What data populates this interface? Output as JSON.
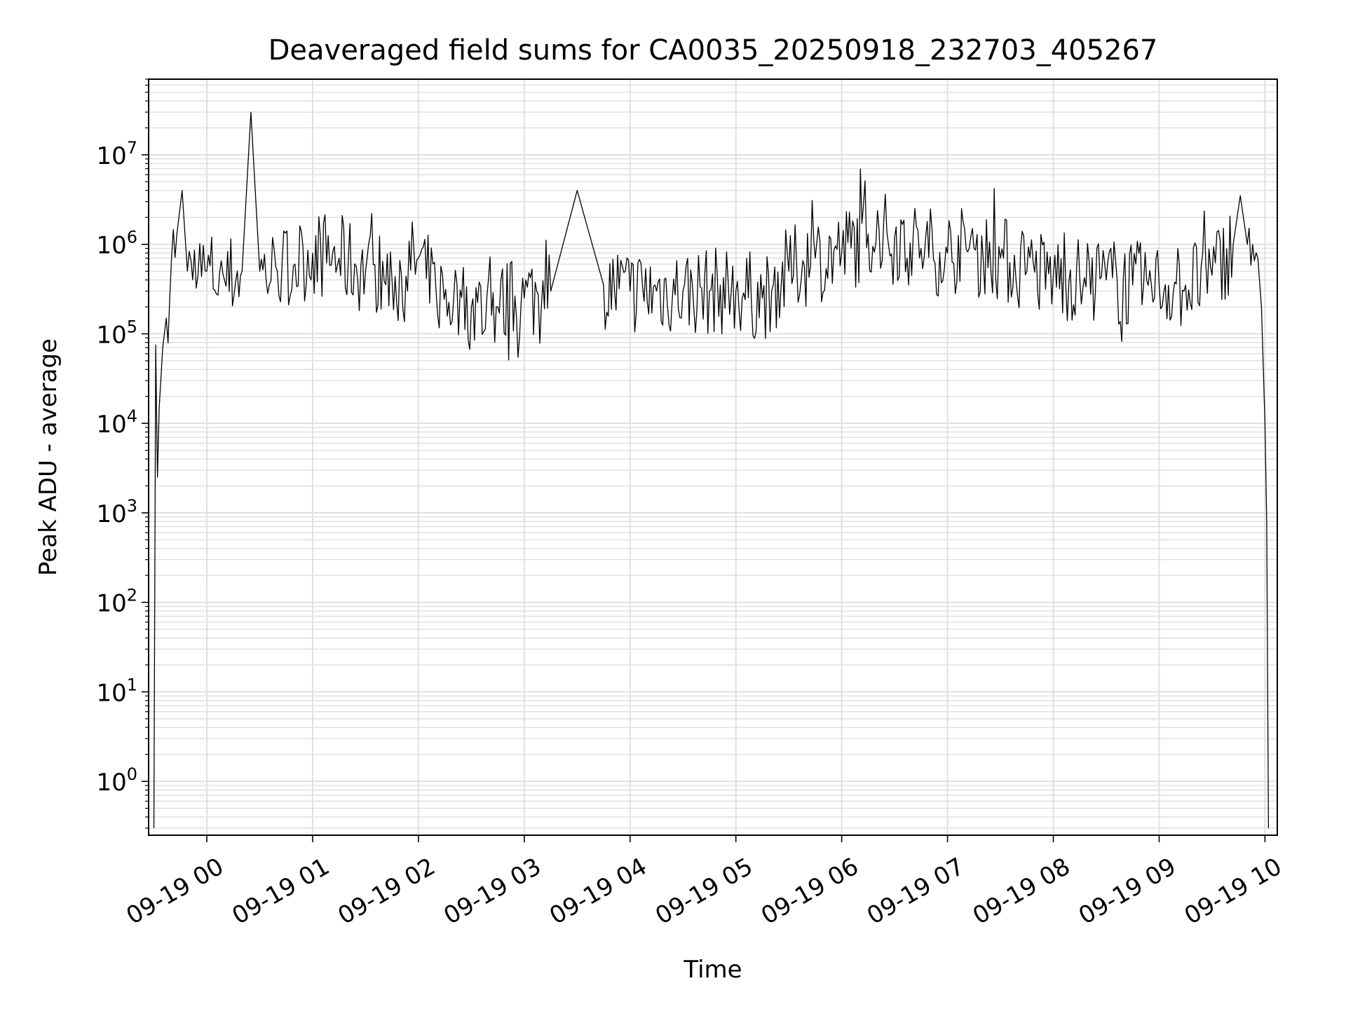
{
  "chart_data": {
    "type": "line",
    "title": "Deaveraged field sums for CA0035_20250918_232703_405267",
    "xlabel": "Time",
    "ylabel": "Peak ADU - average",
    "x_axis_type": "time",
    "y_scale": "log",
    "xlim": [
      "2025-09-18 23:27",
      "2025-09-19 10:07"
    ],
    "ylim": [
      0.25,
      70000000
    ],
    "grid": true,
    "grid_minor": true,
    "legend": "none",
    "line_color": "#000000",
    "grid_color": "#e0e0e0",
    "x_ticks": [
      {
        "value": "2025-09-19 00:00",
        "label": "09-19 00"
      },
      {
        "value": "2025-09-19 01:00",
        "label": "09-19 01"
      },
      {
        "value": "2025-09-19 02:00",
        "label": "09-19 02"
      },
      {
        "value": "2025-09-19 03:00",
        "label": "09-19 03"
      },
      {
        "value": "2025-09-19 04:00",
        "label": "09-19 04"
      },
      {
        "value": "2025-09-19 05:00",
        "label": "09-19 05"
      },
      {
        "value": "2025-09-19 06:00",
        "label": "09-19 06"
      },
      {
        "value": "2025-09-19 07:00",
        "label": "09-19 07"
      },
      {
        "value": "2025-09-19 08:00",
        "label": "09-19 08"
      },
      {
        "value": "2025-09-19 09:00",
        "label": "09-19 09"
      },
      {
        "value": "2025-09-19 10:00",
        "label": "09-19 10"
      }
    ],
    "y_ticks": [
      {
        "value": 1,
        "base": "10",
        "exp": "0"
      },
      {
        "value": 10,
        "base": "10",
        "exp": "1"
      },
      {
        "value": 100,
        "base": "10",
        "exp": "2"
      },
      {
        "value": 1000,
        "base": "10",
        "exp": "3"
      },
      {
        "value": 10000,
        "base": "10",
        "exp": "4"
      },
      {
        "value": 100000,
        "base": "10",
        "exp": "5"
      },
      {
        "value": 1000000,
        "base": "10",
        "exp": "6"
      },
      {
        "value": 10000000,
        "base": "10",
        "exp": "7"
      }
    ],
    "series": [
      {
        "x": [
          "2025-09-18 23:30",
          "2025-09-18 23:31",
          "2025-09-18 23:32",
          "2025-09-18 23:33",
          "2025-09-18 23:35",
          "2025-09-18 23:37",
          "2025-09-18 23:40",
          "2025-09-18 23:43",
          "2025-09-18 23:46",
          "2025-09-18 23:49",
          "2025-09-18 23:52",
          "2025-09-18 23:55",
          "2025-09-19 00:00",
          "2025-09-19 00:10",
          "2025-09-19 00:20",
          "2025-09-19 00:25",
          "2025-09-19 00:30",
          "2025-09-19 00:40",
          "2025-09-19 00:50",
          "2025-09-19 01:00",
          "2025-09-19 01:15",
          "2025-09-19 01:30",
          "2025-09-19 01:45",
          "2025-09-19 02:00",
          "2025-09-19 02:10",
          "2025-09-19 02:20",
          "2025-09-19 02:30",
          "2025-09-19 02:45",
          "2025-09-19 03:00",
          "2025-09-19 03:15",
          "2025-09-19 03:30",
          "2025-09-19 03:45",
          "2025-09-19 04:00",
          "2025-09-19 04:15",
          "2025-09-19 04:30",
          "2025-09-19 04:45",
          "2025-09-19 05:00",
          "2025-09-19 05:15",
          "2025-09-19 05:30",
          "2025-09-19 05:45",
          "2025-09-19 06:00",
          "2025-09-19 06:15",
          "2025-09-19 06:30",
          "2025-09-19 06:45",
          "2025-09-19 07:00",
          "2025-09-19 07:15",
          "2025-09-19 07:30",
          "2025-09-19 07:45",
          "2025-09-19 08:00",
          "2025-09-19 08:15",
          "2025-09-19 08:30",
          "2025-09-19 08:45",
          "2025-09-19 09:00",
          "2025-09-19 09:15",
          "2025-09-19 09:30",
          "2025-09-19 09:42",
          "2025-09-19 09:46",
          "2025-09-19 09:50",
          "2025-09-19 09:53",
          "2025-09-19 09:56",
          "2025-09-19 09:58",
          "2025-09-19 10:00",
          "2025-09-19 10:01",
          "2025-09-19 10:02"
        ],
        "y": [
          0.3,
          75000,
          2500,
          15000,
          70000,
          150000,
          700000,
          1300000,
          4000000,
          500000,
          400000,
          450000,
          500000,
          400000,
          500000,
          30000000,
          500000,
          500000,
          600000,
          800000,
          700000,
          500000,
          400000,
          700000,
          300000,
          250000,
          200000,
          200000,
          250000,
          300000,
          4000000,
          350000,
          300000,
          300000,
          300000,
          300000,
          300000,
          250000,
          500000,
          700000,
          800000,
          1300000,
          1200000,
          900000,
          800000,
          900000,
          700000,
          500000,
          450000,
          400000,
          400000,
          350000,
          350000,
          350000,
          450000,
          1000000,
          3500000,
          1000000,
          1000000,
          700000,
          200000,
          10000,
          800,
          0.3
        ]
      }
    ]
  }
}
